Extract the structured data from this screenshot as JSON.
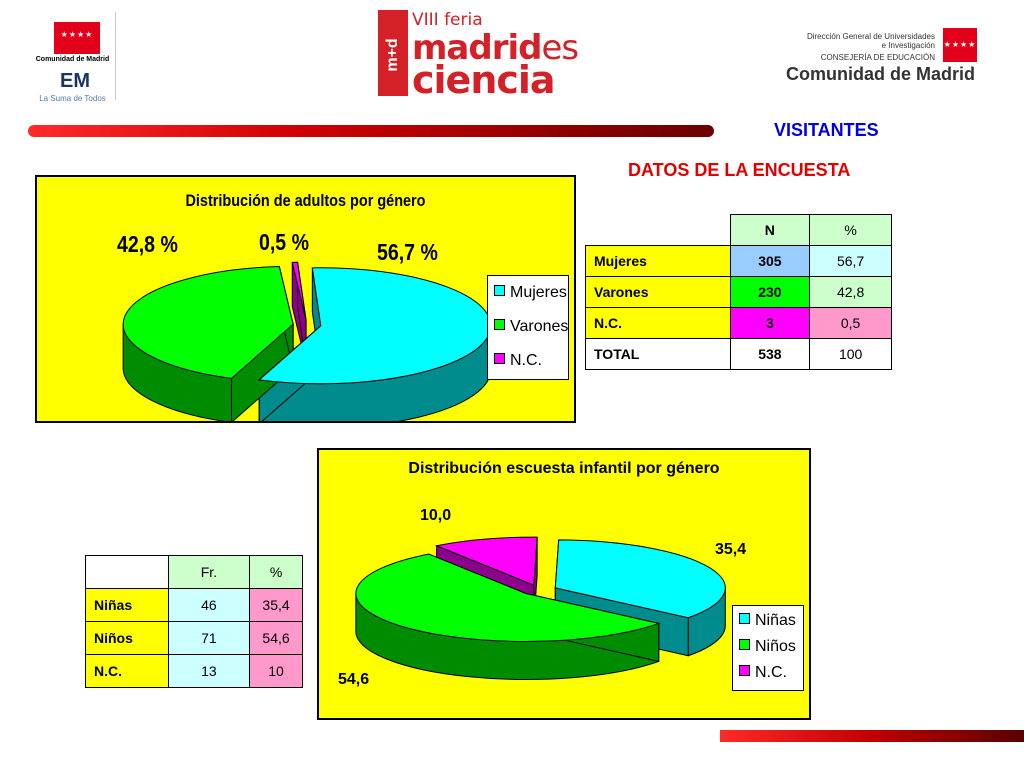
{
  "header": {
    "left_logo": {
      "org": "Comunidad de Madrid",
      "tagline": "La Suma de Todos",
      "mark": "EM",
      "stars": "★★★★"
    },
    "feria": {
      "top": "VIII feria",
      "line1a": "madrid",
      "line1b": "es",
      "line2": "ciencia",
      "vertical": "m+d"
    },
    "right_logo": {
      "line1": "Dirección General de Universidades",
      "line2": "e Investigación",
      "line3": "CONSEJERÍA DE EDUCACIÓN",
      "line4": "Comunidad de Madrid",
      "stars": "★★★★"
    }
  },
  "titles": {
    "visitantes": "VISITANTES",
    "datos": "DATOS DE LA ENCUESTA"
  },
  "colors": {
    "accent_red": "#e00000",
    "accent_blue": "#0000e0",
    "chart_bg": "#ffff00"
  },
  "chart_data": [
    {
      "type": "pie",
      "title": "Distribución de adultos por género",
      "categories": [
        "Mujeres",
        "Varones",
        "N.C."
      ],
      "values": [
        56.7,
        42.8,
        0.5
      ],
      "data_labels": [
        "56,7 %",
        "42,8 %",
        "0,5 %"
      ],
      "colors": [
        "#00ffff",
        "#00ff00",
        "#ff00ff"
      ],
      "legend": "right",
      "style": "3d-exploded"
    },
    {
      "type": "pie",
      "title": "Distribución escuesta infantil por género",
      "categories": [
        "Niñas",
        "Niños",
        "N.C."
      ],
      "values": [
        35.4,
        54.6,
        10.0
      ],
      "data_labels": [
        "35,4",
        "54,6",
        "10,0"
      ],
      "colors": [
        "#00ffff",
        "#00ff00",
        "#ff00ff"
      ],
      "legend": "bottom-right",
      "style": "3d-exploded"
    }
  ],
  "table_adults": {
    "headers": [
      "",
      "N",
      "%"
    ],
    "rows": [
      {
        "label": "Mujeres",
        "n": "305",
        "pct": "56,7"
      },
      {
        "label": "Varones",
        "n": "230",
        "pct": "42,8"
      },
      {
        "label": "N.C.",
        "n": "3",
        "pct": "0,5"
      },
      {
        "label": "TOTAL",
        "n": "538",
        "pct": "100"
      }
    ]
  },
  "table_children": {
    "headers": [
      "",
      "Fr.",
      "%"
    ],
    "rows": [
      {
        "label": "Niñas",
        "n": "46",
        "pct": "35,4"
      },
      {
        "label": "Niños",
        "n": "71",
        "pct": "54,6"
      },
      {
        "label": "N.C.",
        "n": "13",
        "pct": "10"
      }
    ]
  }
}
